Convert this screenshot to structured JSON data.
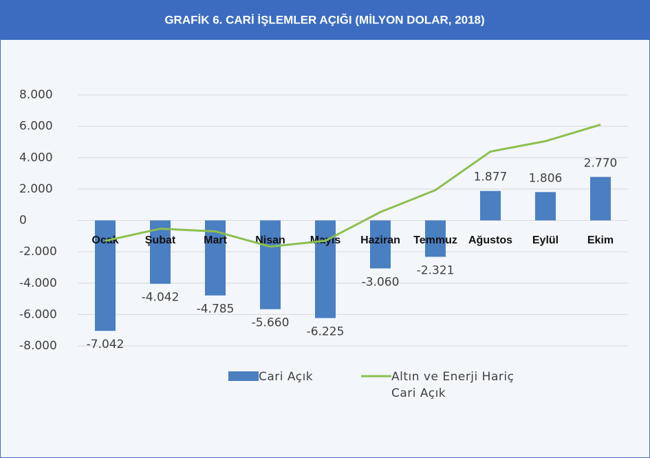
{
  "chart_data": {
    "type": "bar_line",
    "title": "GRAFİK 6. CARİ İŞLEMLER AÇIĞI (MİLYON DOLAR, 2018)",
    "categories": [
      "Ocak",
      "Şubat",
      "Mart",
      "Nisan",
      "Mayıs",
      "Haziran",
      "Temmuz",
      "Ağustos",
      "Eylül",
      "Ekim"
    ],
    "series": [
      {
        "name": "Cari Açık",
        "type": "bar",
        "color": "#4a7fc1",
        "values": [
          -7042,
          -4042,
          -4785,
          -5660,
          -6225,
          -3060,
          -2321,
          1877,
          1806,
          2770
        ],
        "value_labels": [
          "-7.042",
          "-4.042",
          "-4.785",
          "-5.660",
          "-6.225",
          "-3.060",
          "-2.321",
          "1.877",
          "1.806",
          "2.770"
        ]
      },
      {
        "name": "Altın ve Enerji Hariç Cari Açık",
        "type": "line",
        "color": "#8cbf4e",
        "values": [
          -1300,
          -530,
          -700,
          -1670,
          -1300,
          530,
          1930,
          4390,
          5050,
          6100
        ]
      }
    ],
    "ylim": [
      -8000,
      8000
    ],
    "yticks": [
      {
        "value": -8000,
        "label": "-8.000"
      },
      {
        "value": -6000,
        "label": "-6.000"
      },
      {
        "value": -4000,
        "label": "-4.000"
      },
      {
        "value": -2000,
        "label": "-2.000"
      },
      0,
      {
        "value": 2000,
        "label": "2.000"
      },
      {
        "value": 4000,
        "label": "4.000"
      },
      {
        "value": 6000,
        "label": "6.000"
      },
      {
        "value": 8000,
        "label": "8.000"
      }
    ],
    "grid": true,
    "legend": "bottom"
  }
}
